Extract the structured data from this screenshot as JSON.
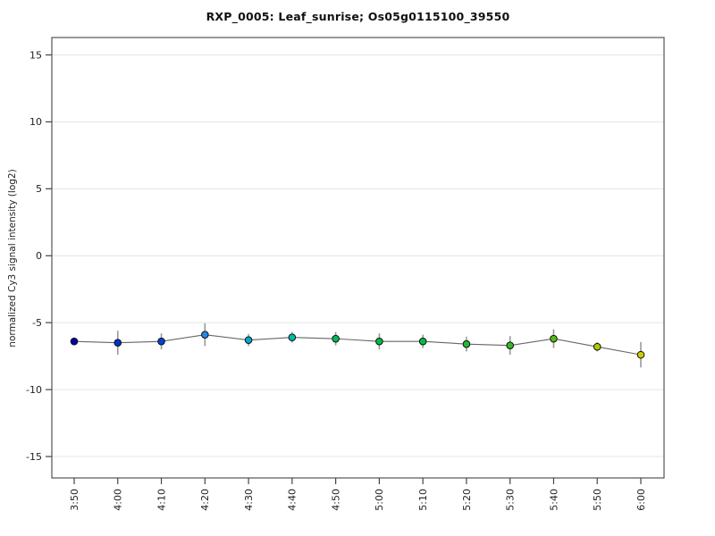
{
  "figure": {
    "title": "RXP_0005: Leaf_sunrise; Os05g0115100_39550",
    "background": "#ffffff"
  },
  "chart_data": {
    "type": "line",
    "title": "RXP_0005: Leaf_sunrise; Os05g0115100_39550",
    "xlabel": "",
    "ylabel": "normalized Cy3 signal intensity (log2)",
    "categories": [
      "3:50",
      "4:00",
      "4:10",
      "4:20",
      "4:30",
      "4:40",
      "4:50",
      "5:00",
      "5:10",
      "5:20",
      "5:30",
      "5:40",
      "5:50",
      "6:00"
    ],
    "y_ticks": [
      15,
      10,
      5,
      0,
      -5,
      -10,
      -15
    ],
    "ylim": [
      -16.6,
      16.3
    ],
    "grid": "horizontal",
    "legend": "none",
    "series": [
      {
        "name": "normalized Cy3 signal intensity (log2)",
        "values": [
          -6.4,
          -6.5,
          -6.4,
          -5.9,
          -6.3,
          -6.1,
          -6.2,
          -6.4,
          -6.4,
          -6.6,
          -6.7,
          -6.2,
          -6.8,
          -7.4
        ],
        "errors": [
          0.15,
          0.9,
          0.6,
          0.85,
          0.45,
          0.4,
          0.5,
          0.6,
          0.5,
          0.55,
          0.7,
          0.7,
          0.35,
          0.95
        ],
        "point_colors": [
          "#0000a8",
          "#0033cc",
          "#0044dd",
          "#2288ee",
          "#00aacc",
          "#00bbaa",
          "#00bb55",
          "#00bb44",
          "#00bb44",
          "#22bb33",
          "#33bb22",
          "#55bb11",
          "#aacc00",
          "#cccc00"
        ]
      }
    ],
    "colors": {
      "line": "#666666",
      "error_bar": "#999999",
      "point_outline": "#111111",
      "grid_line": "#e4e4e4",
      "axis_box": "#555555",
      "tick": "#444444",
      "tick_label": "#222222"
    }
  }
}
